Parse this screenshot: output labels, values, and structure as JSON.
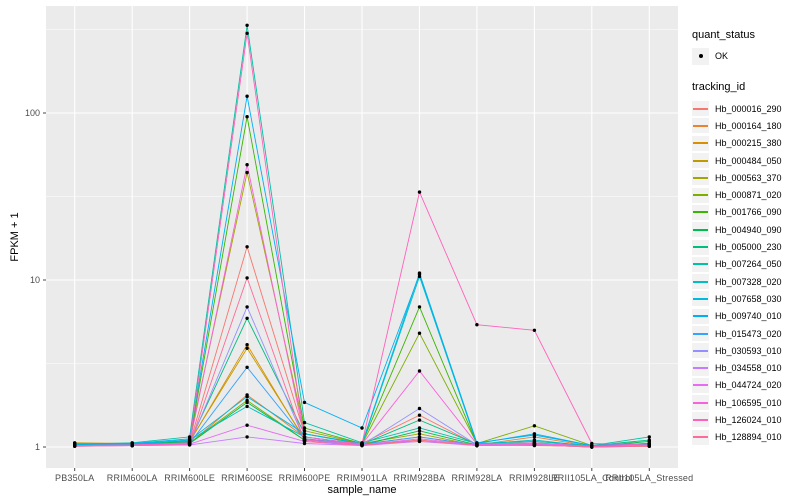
{
  "figure": {
    "background": "#FFFFFF",
    "panel_background": "#EBEBEB",
    "grid_color": "#FFFFFF",
    "tick_color": "#333333",
    "tick_label_color": "#4D4D4D",
    "point_color": "#000000"
  },
  "axes": {
    "x_title": "sample_name",
    "y_title": "FPKM + 1",
    "y_tick_labels": [
      "1",
      "10",
      "100"
    ]
  },
  "legend": {
    "quant_status_title": "quant_status",
    "quant_status_items": [
      "OK"
    ],
    "tracking_id_title": "tracking_id"
  },
  "chart_data": {
    "type": "line",
    "title": "",
    "xlabel": "sample_name",
    "ylabel": "FPKM + 1",
    "y_scale": "log10",
    "y_ticks": [
      1,
      10,
      100
    ],
    "ylim": [
      0.93,
      440
    ],
    "grid": true,
    "legend_position": "right",
    "marker": "black point (quant_status OK)",
    "categories": [
      "PB350LA",
      "RRIM600LA",
      "RRIM600LE",
      "RRIM600SE",
      "RRIM600PE",
      "RRIM901LA",
      "RRIM928BA",
      "RRIM928LA",
      "RRIM928LE",
      "RRII105LA_Control",
      "RRII105LA_Stressed"
    ],
    "series": [
      {
        "name": "Hb_000016_290",
        "color": "#F8766D",
        "values": [
          1.02,
          1.02,
          1.05,
          15.8,
          1.2,
          1.05,
          1.55,
          1.03,
          1.05,
          1.0,
          1.02
        ]
      },
      {
        "name": "Hb_000164_180",
        "color": "#EA8331",
        "values": [
          1.03,
          1.02,
          1.05,
          2.05,
          1.15,
          1.04,
          1.15,
          1.03,
          1.15,
          1.01,
          1.02
        ]
      },
      {
        "name": "Hb_000215_380",
        "color": "#D89000",
        "values": [
          1.05,
          1.04,
          1.07,
          4.1,
          1.1,
          1.03,
          1.1,
          1.02,
          1.03,
          1.0,
          1.01
        ]
      },
      {
        "name": "Hb_000484_050",
        "color": "#C09B00",
        "values": [
          1.06,
          1.05,
          1.08,
          3.9,
          1.12,
          1.04,
          1.08,
          1.03,
          1.02,
          1.01,
          1.02
        ]
      },
      {
        "name": "Hb_000563_370",
        "color": "#A3A500",
        "values": [
          1.05,
          1.03,
          1.1,
          44.0,
          1.25,
          1.05,
          1.2,
          1.02,
          1.04,
          1.0,
          1.03
        ]
      },
      {
        "name": "Hb_000871_020",
        "color": "#7CAE00",
        "values": [
          1.02,
          1.04,
          1.06,
          1.9,
          1.1,
          1.04,
          4.8,
          1.05,
          1.34,
          1.02,
          1.05
        ]
      },
      {
        "name": "Hb_001766_090",
        "color": "#39B600",
        "values": [
          1.03,
          1.05,
          1.08,
          95.0,
          1.3,
          1.05,
          6.9,
          1.04,
          1.06,
          1.01,
          1.04
        ]
      },
      {
        "name": "Hb_004940_090",
        "color": "#00BB4E",
        "values": [
          1.02,
          1.03,
          1.05,
          1.85,
          1.1,
          1.03,
          1.25,
          1.03,
          1.04,
          1.01,
          1.08
        ]
      },
      {
        "name": "Hb_005000_230",
        "color": "#00BF7D",
        "values": [
          1.03,
          1.04,
          1.07,
          5.9,
          1.2,
          1.04,
          1.45,
          1.04,
          1.05,
          1.02,
          1.1
        ]
      },
      {
        "name": "Hb_007264_050",
        "color": "#00C1A3",
        "values": [
          1.04,
          1.06,
          1.15,
          335,
          1.4,
          1.06,
          1.3,
          1.05,
          1.08,
          1.02,
          1.15
        ]
      },
      {
        "name": "Hb_007328_020",
        "color": "#00BFC4",
        "values": [
          1.03,
          1.04,
          1.1,
          1.75,
          1.15,
          1.04,
          10.5,
          1.04,
          1.1,
          1.01,
          1.05
        ]
      },
      {
        "name": "Hb_007658_030",
        "color": "#00BAE0",
        "values": [
          1.02,
          1.04,
          1.1,
          2.0,
          1.2,
          1.05,
          11.0,
          1.05,
          1.2,
          1.02,
          1.04
        ]
      },
      {
        "name": "Hb_009740_010",
        "color": "#00B0F6",
        "values": [
          1.04,
          1.05,
          1.12,
          126,
          1.85,
          1.3,
          10.8,
          1.06,
          1.18,
          1.02,
          1.05
        ]
      },
      {
        "name": "Hb_015473_020",
        "color": "#35A2FF",
        "values": [
          1.02,
          1.03,
          1.05,
          3.0,
          1.12,
          1.04,
          1.15,
          1.03,
          1.04,
          1.01,
          1.03
        ]
      },
      {
        "name": "Hb_030593_010",
        "color": "#9590FF",
        "values": [
          1.02,
          1.02,
          1.04,
          6.9,
          1.1,
          1.03,
          1.7,
          1.03,
          1.05,
          1.01,
          1.02
        ]
      },
      {
        "name": "Hb_034558_010",
        "color": "#C77CFF",
        "values": [
          1.01,
          1.02,
          1.03,
          1.15,
          1.05,
          1.02,
          1.08,
          1.02,
          1.03,
          1.0,
          1.02
        ]
      },
      {
        "name": "Hb_044724_020",
        "color": "#E76BF3",
        "values": [
          1.02,
          1.02,
          1.04,
          1.35,
          1.08,
          1.03,
          1.12,
          1.03,
          1.04,
          1.01,
          1.02
        ]
      },
      {
        "name": "Hb_106595_010",
        "color": "#FA62DB",
        "values": [
          1.02,
          1.03,
          1.05,
          49.0,
          1.15,
          1.04,
          2.85,
          1.04,
          1.06,
          1.01,
          1.03
        ]
      },
      {
        "name": "Hb_126024_010",
        "color": "#FF62BC",
        "values": [
          1.02,
          1.03,
          1.06,
          300,
          1.1,
          1.05,
          33.6,
          5.4,
          5.0,
          1.05,
          1.03
        ]
      },
      {
        "name": "Hb_128894_010",
        "color": "#FF6A98",
        "values": [
          1.01,
          1.02,
          1.03,
          10.3,
          1.08,
          1.02,
          1.1,
          1.02,
          1.03,
          1.0,
          1.01
        ]
      }
    ]
  }
}
